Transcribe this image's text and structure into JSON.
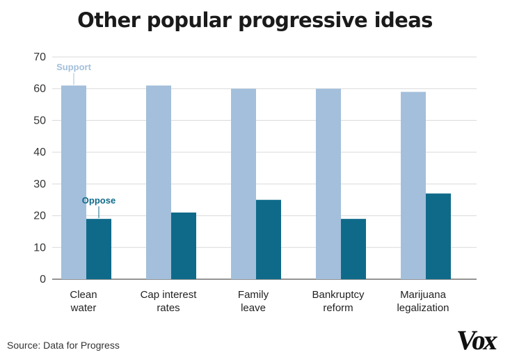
{
  "title": "Other popular progressive ideas",
  "source": "Source: Data for Progress",
  "logo": "Vox",
  "chart_data": {
    "type": "bar",
    "title": "Other popular progressive ideas",
    "xlabel": "",
    "ylabel": "",
    "ylim": [
      0,
      70
    ],
    "yticks": [
      0,
      10,
      20,
      30,
      40,
      50,
      60,
      70
    ],
    "grid": true,
    "categories": [
      [
        "Clean",
        "water"
      ],
      [
        "Cap interest",
        "rates"
      ],
      [
        "Family",
        "leave"
      ],
      [
        "Bankruptcy",
        "reform"
      ],
      [
        "Marijuana",
        "legalization"
      ]
    ],
    "series": [
      {
        "name": "Support",
        "color": "#a3bfdb",
        "values": [
          61,
          61,
          60,
          60,
          59
        ]
      },
      {
        "name": "Oppose",
        "color": "#0f6a8a",
        "values": [
          19,
          21,
          25,
          19,
          27
        ]
      }
    ],
    "annotations": [
      {
        "text": "Support",
        "series": 0,
        "category": 0,
        "color": "#a3bfdb"
      },
      {
        "text": "Oppose",
        "series": 1,
        "category": 0,
        "color": "#0f6a8a"
      }
    ]
  }
}
